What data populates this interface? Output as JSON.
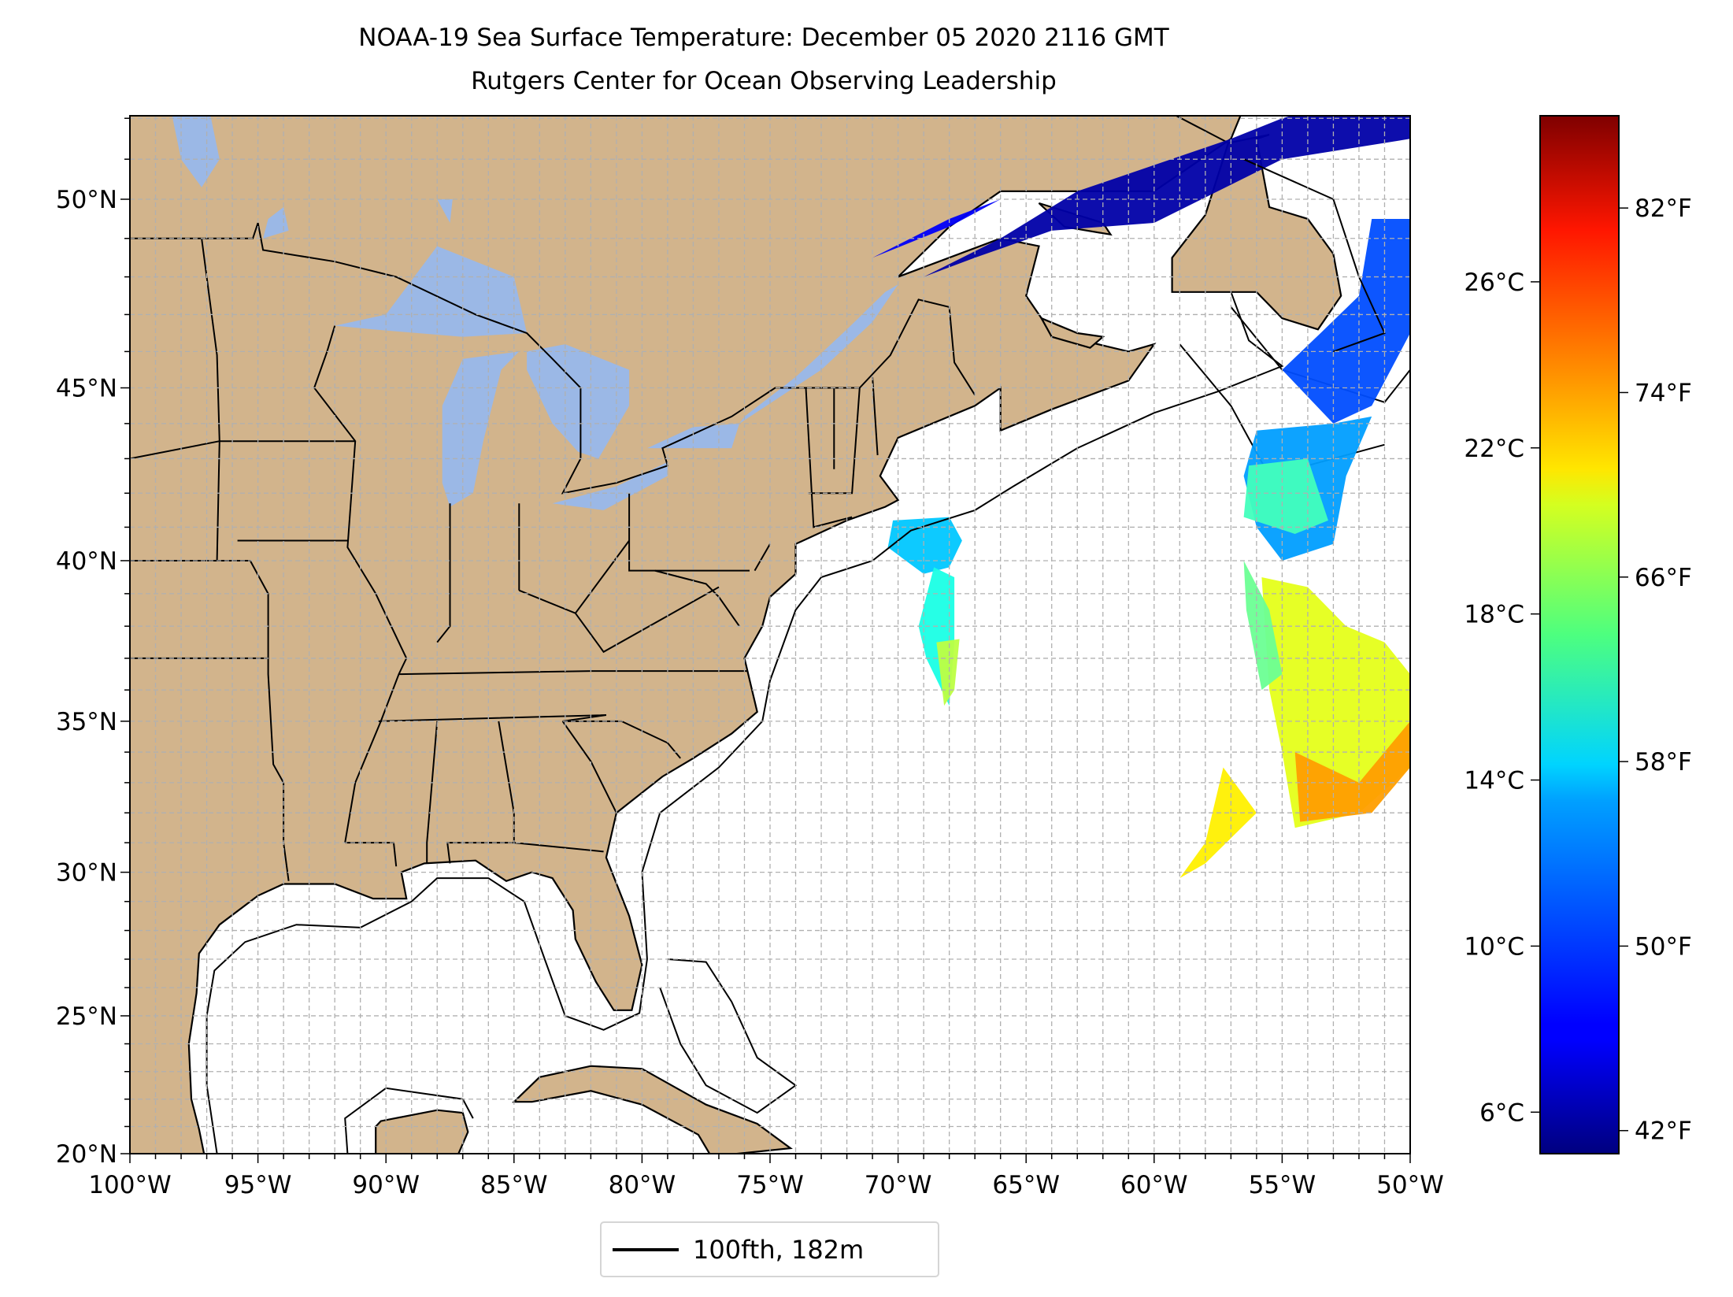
{
  "title": {
    "line1": "NOAA-19 Sea Surface Temperature: December 05 2020 2116 GMT",
    "line2": "Rutgers Center for Ocean Observing Leadership"
  },
  "chart_data": {
    "type": "map",
    "projection": "mercator",
    "extent": {
      "lon": [
        -100,
        -50
      ],
      "lat": [
        20,
        52.5
      ]
    },
    "grid": {
      "on": true,
      "spacing_deg": 1,
      "style": "dashed"
    },
    "lat_ticks": [
      {
        "value": 20,
        "label": "20°N"
      },
      {
        "value": 25,
        "label": "25°N"
      },
      {
        "value": 30,
        "label": "30°N"
      },
      {
        "value": 35,
        "label": "35°N"
      },
      {
        "value": 40,
        "label": "40°N"
      },
      {
        "value": 45,
        "label": "45°N"
      },
      {
        "value": 50,
        "label": "50°N"
      }
    ],
    "lon_ticks": [
      {
        "value": -100,
        "label": "100°W"
      },
      {
        "value": -95,
        "label": "95°W"
      },
      {
        "value": -90,
        "label": "90°W"
      },
      {
        "value": -85,
        "label": "85°W"
      },
      {
        "value": -80,
        "label": "80°W"
      },
      {
        "value": -75,
        "label": "75°W"
      },
      {
        "value": -70,
        "label": "70°W"
      },
      {
        "value": -65,
        "label": "65°W"
      },
      {
        "value": -60,
        "label": "60°W"
      },
      {
        "value": -55,
        "label": "55°W"
      },
      {
        "value": -50,
        "label": "50°W"
      }
    ],
    "colorbar": {
      "colormap": "jet",
      "range_c": [
        5,
        30
      ],
      "celsius_ticks": [
        {
          "value": 6,
          "label": "6°C"
        },
        {
          "value": 10,
          "label": "10°C"
        },
        {
          "value": 14,
          "label": "14°C"
        },
        {
          "value": 18,
          "label": "18°C"
        },
        {
          "value": 22,
          "label": "22°C"
        },
        {
          "value": 26,
          "label": "26°C"
        }
      ],
      "fahrenheit_ticks": [
        {
          "value": 42,
          "label": "42°F"
        },
        {
          "value": 50,
          "label": "50°F"
        },
        {
          "value": 58,
          "label": "58°F"
        },
        {
          "value": 66,
          "label": "66°F"
        },
        {
          "value": 74,
          "label": "74°F"
        },
        {
          "value": 82,
          "label": "82°F"
        }
      ]
    },
    "legend": {
      "placement": "bottom-center",
      "entries": [
        {
          "label": "100fth, 182m",
          "color": "#000000"
        }
      ]
    },
    "colors": {
      "land": "#d2b48c",
      "lakes": "#9bb8e6",
      "ocean": "#ffffff",
      "grid": "#b0b0b0"
    }
  }
}
